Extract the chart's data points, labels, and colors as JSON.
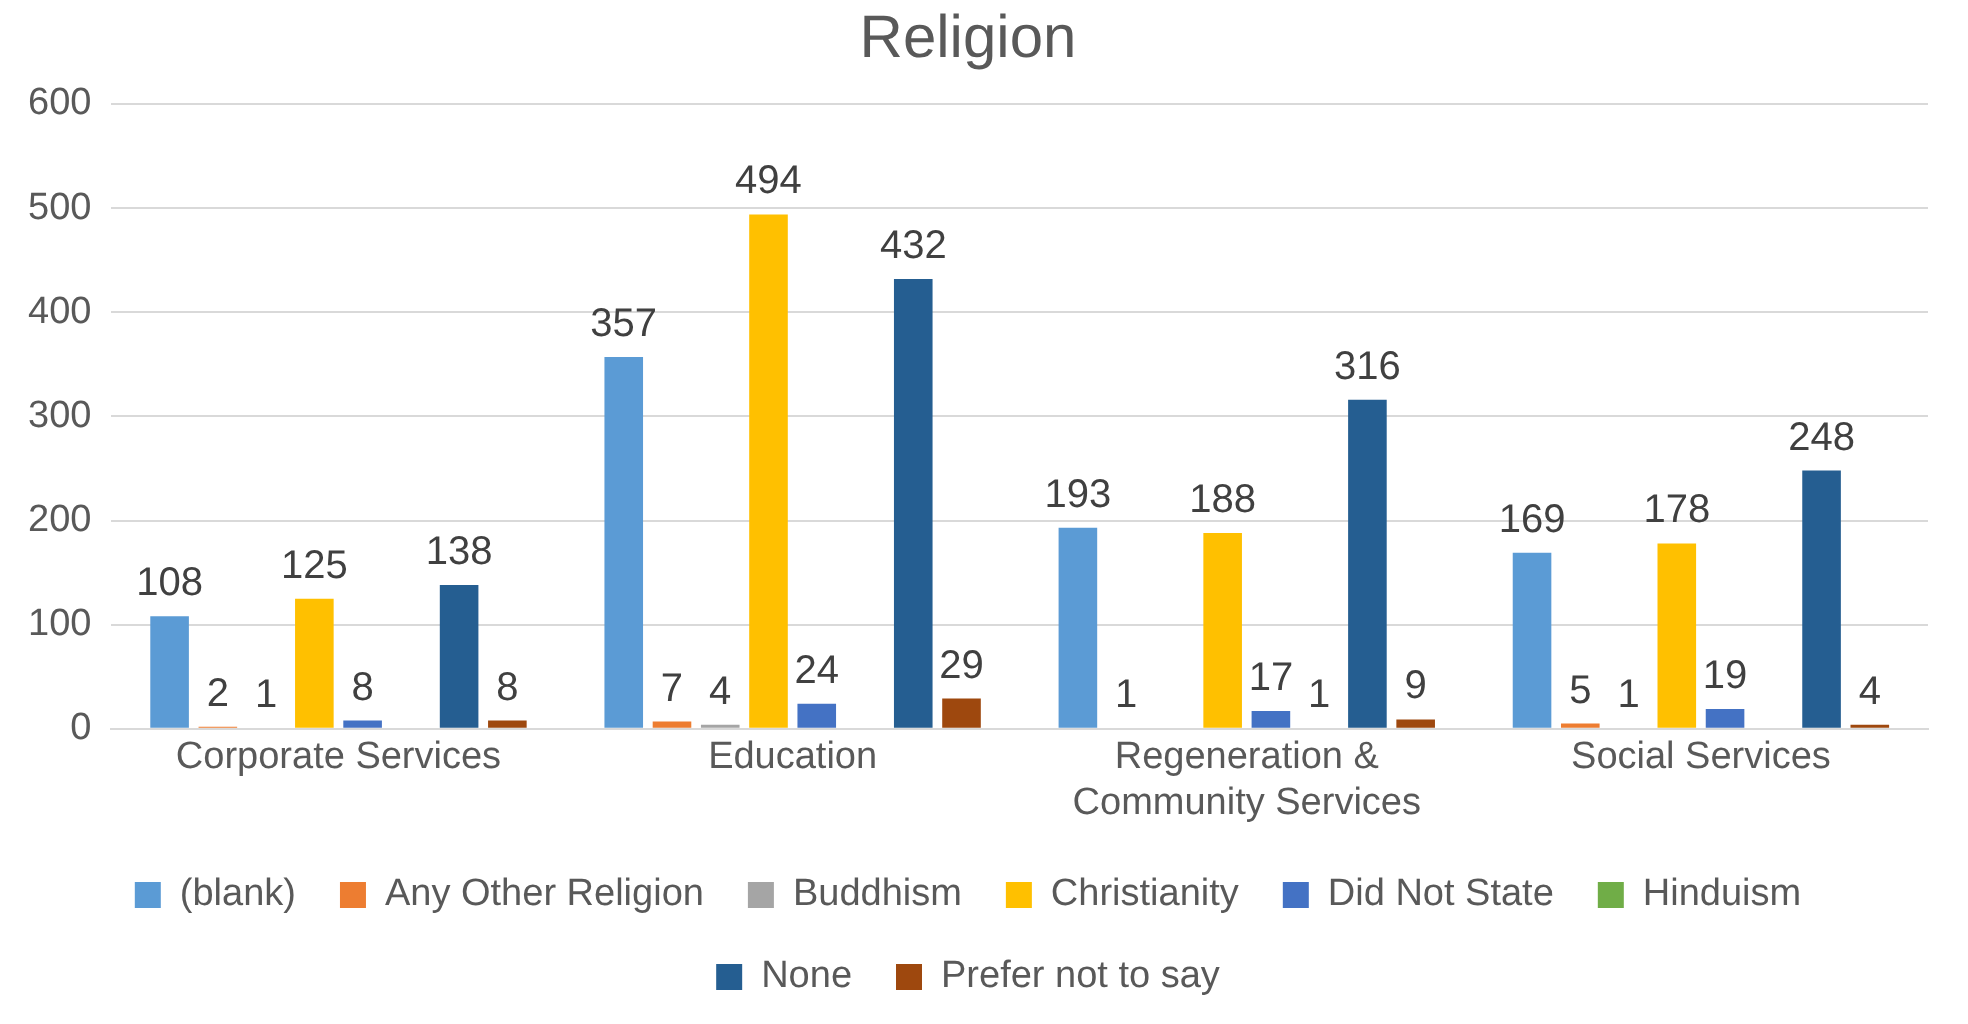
{
  "chart_data": {
    "type": "bar",
    "title": "Religion",
    "categories": [
      "Corporate Services",
      "Education",
      "Regeneration & Community Services",
      "Social Services"
    ],
    "series": [
      {
        "name": "(blank)",
        "color": "#5b9bd5",
        "values": [
          108,
          357,
          193,
          169
        ]
      },
      {
        "name": "Any Other Religion",
        "color": "#ed7d31",
        "values": [
          2,
          7,
          1,
          5
        ]
      },
      {
        "name": "Buddhism",
        "color": "#a5a5a5",
        "values": [
          1,
          4,
          null,
          1
        ]
      },
      {
        "name": "Christianity",
        "color": "#ffc000",
        "values": [
          125,
          494,
          188,
          178
        ]
      },
      {
        "name": "Did Not State",
        "color": "#4472c4",
        "values": [
          8,
          24,
          17,
          19
        ]
      },
      {
        "name": "Hinduism",
        "color": "#70ad47",
        "values": [
          null,
          null,
          1,
          null
        ]
      },
      {
        "name": "None",
        "color": "#255e91",
        "values": [
          138,
          432,
          316,
          248
        ]
      },
      {
        "name": "Prefer not to say",
        "color": "#9e480e",
        "values": [
          8,
          29,
          9,
          4
        ]
      }
    ],
    "ylim": [
      0,
      600
    ],
    "yticks": [
      0,
      100,
      200,
      300,
      400,
      500,
      600
    ],
    "grid": "y",
    "legend": "bottom",
    "data_labels": true
  }
}
